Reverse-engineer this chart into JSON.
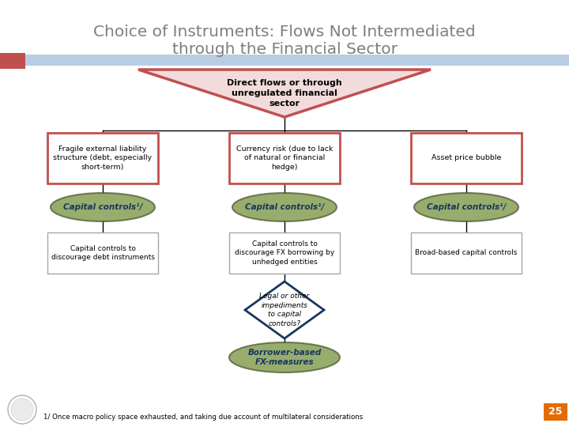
{
  "title_line1": "Choice of Instruments: Flows Not Intermediated",
  "title_line2": "through the Financial Sector",
  "title_color": "#7f7f7f",
  "title_fontsize": 14.5,
  "bg_color": "#ffffff",
  "header_bar_color": "#b8cce4",
  "orange_rect_color": "#c0504d",
  "top_node": {
    "text": "Direct flows or through\nunregulated financial\nsector",
    "fill": "#f2dcdb",
    "edge": "#c0504d"
  },
  "level2_boxes": [
    {
      "text": "Fragile external liability\nstructure (debt, especially\nshort-term)",
      "fill": "#ffffff",
      "edge": "#c0504d",
      "lw": 2.0
    },
    {
      "text": "Currency risk (due to lack\nof natural or financial\nhedge)",
      "fill": "#ffffff",
      "edge": "#c0504d",
      "lw": 2.0
    },
    {
      "text": "Asset price bubble",
      "fill": "#ffffff",
      "edge": "#c0504d",
      "lw": 2.0
    }
  ],
  "ellipse_text": "Capital controls¹/",
  "ellipse_fill": "#76923c",
  "ellipse_edge": "#4d5a30",
  "level3_boxes": [
    {
      "text": "Capital controls to\ndiscourage debt instruments"
    },
    {
      "text": "Capital controls to\ndiscourage FX borrowing by\nunhedged entities"
    },
    {
      "text": "Broad-based capital controls"
    }
  ],
  "level3_box_edge": "#a6a6a6",
  "diamond_text": "Legal or other\nimpediments\nto capital\ncontrols?",
  "diamond_fill": "#ffffff",
  "diamond_edge": "#17375e",
  "bottom_ellipse_text": "Borrower-based\nFX-measures",
  "bottom_ellipse_fill": "#76923c",
  "bottom_ellipse_edge": "#4d5a30",
  "footnote": "1/ Once macro policy space exhausted, and taking due account of multilateral considerations",
  "page_num": "25",
  "page_num_bg": "#e36c09"
}
